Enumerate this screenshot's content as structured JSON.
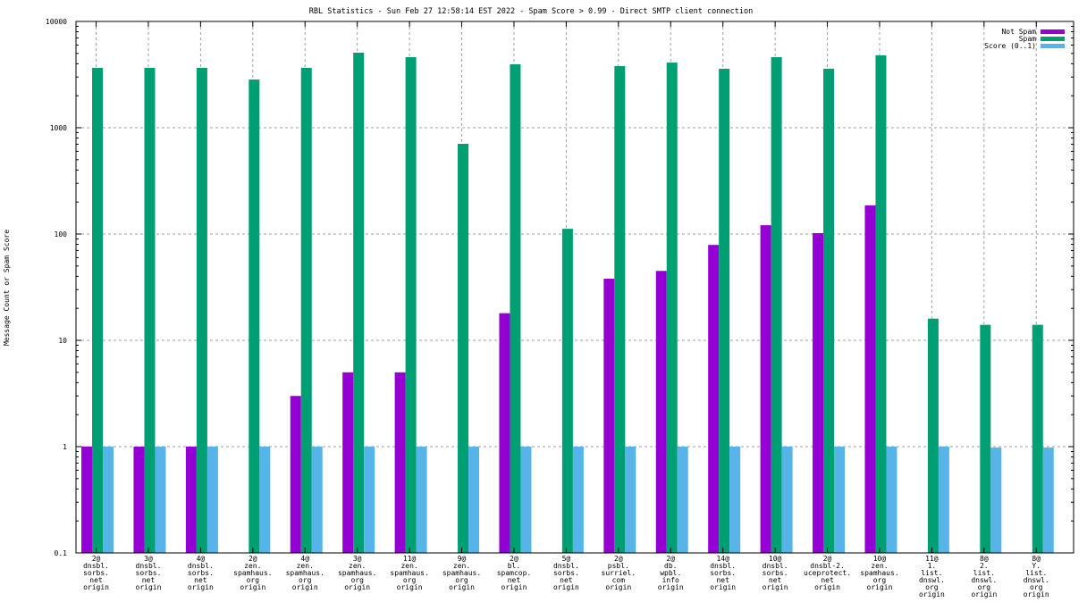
{
  "chart_data": {
    "type": "bar",
    "title": "RBL Statistics - Sun Feb 27 12:58:14 EST 2022 - Spam Score > 0.99 - Direct SMTP client connection",
    "xlabel": "",
    "ylabel": "Message Count or Spam Score",
    "yscale": "log",
    "ylim": [
      0.1,
      10000
    ],
    "yticks": [
      "0.1",
      "1",
      "10",
      "100",
      "1000",
      "10000"
    ],
    "grid": true,
    "legend_position": "top-right",
    "categories": [
      [
        "2@",
        "dnsbl.",
        "sorbs.",
        "net",
        "origin"
      ],
      [
        "3@",
        "dnsbl.",
        "sorbs.",
        "net",
        "origin"
      ],
      [
        "4@",
        "dnsbl.",
        "sorbs.",
        "net",
        "origin"
      ],
      [
        "2@",
        "zen.",
        "spamhaus.",
        "org",
        "origin"
      ],
      [
        "4@",
        "zen.",
        "spamhaus.",
        "org",
        "origin"
      ],
      [
        "3@",
        "zen.",
        "spamhaus.",
        "org",
        "origin"
      ],
      [
        "11@",
        "zen.",
        "spamhaus.",
        "org",
        "origin"
      ],
      [
        "9@",
        "zen.",
        "spamhaus.",
        "org",
        "origin"
      ],
      [
        "2@",
        "bl.",
        "spamcop.",
        "net",
        "origin"
      ],
      [
        "5@",
        "dnsbl.",
        "sorbs.",
        "net",
        "origin"
      ],
      [
        "2@",
        "psbl.",
        "surriel.",
        "com",
        "origin"
      ],
      [
        "2@",
        "db.",
        "wpbl.",
        "info",
        "origin"
      ],
      [
        "14@",
        "dnsbl.",
        "sorbs.",
        "net",
        "origin"
      ],
      [
        "10@",
        "dnsbl.",
        "sorbs.",
        "net",
        "origin"
      ],
      [
        "2@",
        "dnsbl-2.",
        "uceprotect.",
        "net",
        "origin"
      ],
      [
        "10@",
        "zen.",
        "spamhaus.",
        "org",
        "origin"
      ],
      [
        "11@",
        "1.",
        "list.",
        "dnswl.",
        "org",
        "origin"
      ],
      [
        "8@",
        "2.",
        "list.",
        "dnswl.",
        "org",
        "origin"
      ],
      [
        "8@",
        "Y.",
        "list.",
        "dnswl.",
        "org",
        "origin"
      ]
    ],
    "series": [
      {
        "name": "Not Spam",
        "color": "#9400d3",
        "values": [
          1,
          1,
          1,
          null,
          3,
          5,
          5,
          null,
          18,
          null,
          38,
          45,
          79,
          121,
          102,
          186,
          null,
          null,
          null
        ]
      },
      {
        "name": "Spam",
        "color": "#009e73",
        "values": [
          3660,
          3660,
          3660,
          2840,
          3660,
          5080,
          4610,
          706,
          3950,
          112,
          3800,
          4100,
          3590,
          4610,
          3590,
          4800,
          16,
          14,
          14
        ]
      },
      {
        "name": "Score (0..1)",
        "color": "#56b4e9",
        "values": [
          1,
          1,
          1,
          1,
          1,
          1,
          1,
          1,
          1,
          1,
          1,
          1,
          1,
          1,
          1,
          1,
          1,
          0.98,
          0.98
        ]
      }
    ]
  }
}
